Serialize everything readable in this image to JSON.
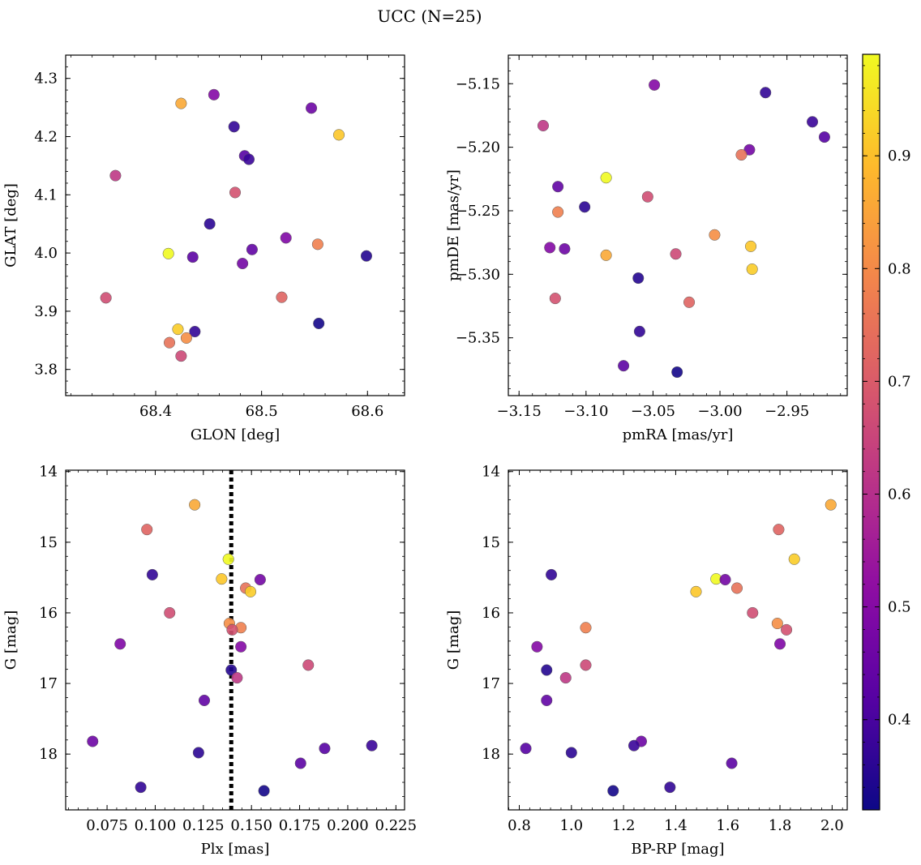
{
  "figure": {
    "title": "UCC (N=25)"
  },
  "colorbar": {
    "colormap": "plasma",
    "range": [
      0.32,
      0.99
    ],
    "ticks": [
      0.4,
      0.5,
      0.6,
      0.7,
      0.8,
      0.9
    ]
  },
  "chart_data": [
    {
      "type": "scatter",
      "id": "glon-glat",
      "xlabel": "GLON [deg]",
      "ylabel": "GLAT [deg]",
      "xlim": [
        68.315,
        68.635
      ],
      "ylim": [
        3.755,
        4.34
      ],
      "y_inverted": false,
      "xticks": [
        68.4,
        68.5,
        68.6
      ],
      "xtick_labels": [
        "68.4",
        "68.5",
        "68.6"
      ],
      "yticks": [
        3.8,
        3.9,
        4.0,
        4.1,
        4.2,
        4.3
      ],
      "ytick_labels": [
        "3.8",
        "3.9",
        "4.0",
        "4.1",
        "4.2",
        "4.3"
      ],
      "points": [
        {
          "x": 68.455,
          "y": 4.272,
          "c": 0.5
        },
        {
          "x": 68.424,
          "y": 4.257,
          "c": 0.86
        },
        {
          "x": 68.547,
          "y": 4.249,
          "c": 0.46
        },
        {
          "x": 68.474,
          "y": 4.217,
          "c": 0.37
        },
        {
          "x": 68.573,
          "y": 4.203,
          "c": 0.91
        },
        {
          "x": 68.484,
          "y": 4.167,
          "c": 0.42
        },
        {
          "x": 68.488,
          "y": 4.161,
          "c": 0.38
        },
        {
          "x": 68.362,
          "y": 4.133,
          "c": 0.62
        },
        {
          "x": 68.475,
          "y": 4.104,
          "c": 0.68
        },
        {
          "x": 68.451,
          "y": 4.05,
          "c": 0.36
        },
        {
          "x": 68.523,
          "y": 4.026,
          "c": 0.49
        },
        {
          "x": 68.553,
          "y": 4.015,
          "c": 0.78
        },
        {
          "x": 68.491,
          "y": 4.006,
          "c": 0.44
        },
        {
          "x": 68.412,
          "y": 3.999,
          "c": 0.99
        },
        {
          "x": 68.599,
          "y": 3.995,
          "c": 0.35
        },
        {
          "x": 68.435,
          "y": 3.993,
          "c": 0.43
        },
        {
          "x": 68.482,
          "y": 3.982,
          "c": 0.47
        },
        {
          "x": 68.353,
          "y": 3.923,
          "c": 0.67
        },
        {
          "x": 68.519,
          "y": 3.924,
          "c": 0.72
        },
        {
          "x": 68.554,
          "y": 3.879,
          "c": 0.33
        },
        {
          "x": 68.421,
          "y": 3.869,
          "c": 0.92
        },
        {
          "x": 68.437,
          "y": 3.865,
          "c": 0.37
        },
        {
          "x": 68.429,
          "y": 3.854,
          "c": 0.81
        },
        {
          "x": 68.413,
          "y": 3.846,
          "c": 0.75
        },
        {
          "x": 68.424,
          "y": 3.823,
          "c": 0.66
        }
      ]
    },
    {
      "type": "scatter",
      "id": "pm",
      "xlabel": "pmRA [mas/yr]",
      "ylabel": "pmDE [mas/yr]",
      "xlim": [
        -3.158,
        -2.905
      ],
      "ylim": [
        -5.3955,
        -5.1275
      ],
      "y_inverted": false,
      "xticks": [
        -3.15,
        -3.1,
        -3.05,
        -3.0,
        -2.95
      ],
      "xtick_labels": [
        "−3.15",
        "−3.10",
        "−3.05",
        "−3.00",
        "−2.95"
      ],
      "yticks": [
        -5.35,
        -5.3,
        -5.25,
        -5.2,
        -5.15
      ],
      "ytick_labels": [
        "−5.35",
        "−5.30",
        "−5.25",
        "−5.20",
        "−5.15"
      ],
      "points": [
        {
          "x": -3.049,
          "y": -5.151,
          "c": 0.5
        },
        {
          "x": -2.966,
          "y": -5.157,
          "c": 0.37
        },
        {
          "x": -2.931,
          "y": -5.18,
          "c": 0.38
        },
        {
          "x": -2.922,
          "y": -5.192,
          "c": 0.42
        },
        {
          "x": -3.132,
          "y": -5.183,
          "c": 0.62
        },
        {
          "x": -2.978,
          "y": -5.202,
          "c": 0.47
        },
        {
          "x": -2.984,
          "y": -5.206,
          "c": 0.75
        },
        {
          "x": -3.085,
          "y": -5.224,
          "c": 0.99
        },
        {
          "x": -3.121,
          "y": -5.231,
          "c": 0.44
        },
        {
          "x": -3.054,
          "y": -5.239,
          "c": 0.67
        },
        {
          "x": -3.101,
          "y": -5.247,
          "c": 0.36
        },
        {
          "x": -3.121,
          "y": -5.251,
          "c": 0.78
        },
        {
          "x": -3.004,
          "y": -5.269,
          "c": 0.81
        },
        {
          "x": -2.977,
          "y": -5.278,
          "c": 0.91
        },
        {
          "x": -3.127,
          "y": -5.279,
          "c": 0.5
        },
        {
          "x": -3.116,
          "y": -5.28,
          "c": 0.46
        },
        {
          "x": -3.085,
          "y": -5.285,
          "c": 0.86
        },
        {
          "x": -3.033,
          "y": -5.284,
          "c": 0.66
        },
        {
          "x": -2.976,
          "y": -5.296,
          "c": 0.92
        },
        {
          "x": -3.061,
          "y": -5.303,
          "c": 0.35
        },
        {
          "x": -3.123,
          "y": -5.319,
          "c": 0.68
        },
        {
          "x": -3.023,
          "y": -5.322,
          "c": 0.72
        },
        {
          "x": -3.06,
          "y": -5.345,
          "c": 0.37
        },
        {
          "x": -3.072,
          "y": -5.372,
          "c": 0.43
        },
        {
          "x": -3.032,
          "y": -5.377,
          "c": 0.33
        }
      ]
    },
    {
      "type": "scatter",
      "id": "plx-g",
      "xlabel": "Plx [mas]",
      "ylabel": "G [mag]",
      "xlim": [
        0.0535,
        0.2295
      ],
      "ylim": [
        18.79,
        13.98
      ],
      "y_inverted": true,
      "xticks": [
        0.075,
        0.1,
        0.125,
        0.15,
        0.175,
        0.2,
        0.225
      ],
      "xtick_labels": [
        "0.075",
        "0.100",
        "0.125",
        "0.150",
        "0.175",
        "0.200",
        "0.225"
      ],
      "yticks": [
        14,
        15,
        16,
        17,
        18
      ],
      "ytick_labels": [
        "14",
        "15",
        "16",
        "17",
        "18"
      ],
      "vline": {
        "x": 0.1395,
        "style": "dotted",
        "color": "#000000"
      },
      "points": [
        {
          "x": 0.1205,
          "y": 14.47,
          "c": 0.86
        },
        {
          "x": 0.0957,
          "y": 14.82,
          "c": 0.72
        },
        {
          "x": 0.138,
          "y": 15.24,
          "c": 0.99
        },
        {
          "x": 0.0985,
          "y": 15.46,
          "c": 0.37
        },
        {
          "x": 0.1345,
          "y": 15.52,
          "c": 0.91
        },
        {
          "x": 0.1545,
          "y": 15.53,
          "c": 0.47
        },
        {
          "x": 0.147,
          "y": 15.65,
          "c": 0.75
        },
        {
          "x": 0.1495,
          "y": 15.7,
          "c": 0.92
        },
        {
          "x": 0.1075,
          "y": 16.0,
          "c": 0.67
        },
        {
          "x": 0.1385,
          "y": 16.15,
          "c": 0.81
        },
        {
          "x": 0.1445,
          "y": 16.21,
          "c": 0.78
        },
        {
          "x": 0.14,
          "y": 16.24,
          "c": 0.68
        },
        {
          "x": 0.0818,
          "y": 16.44,
          "c": 0.49
        },
        {
          "x": 0.1445,
          "y": 16.48,
          "c": 0.5
        },
        {
          "x": 0.1795,
          "y": 16.74,
          "c": 0.66
        },
        {
          "x": 0.1395,
          "y": 16.81,
          "c": 0.35
        },
        {
          "x": 0.1425,
          "y": 16.92,
          "c": 0.62
        },
        {
          "x": 0.1255,
          "y": 17.24,
          "c": 0.44
        },
        {
          "x": 0.0675,
          "y": 17.82,
          "c": 0.46
        },
        {
          "x": 0.2125,
          "y": 17.88,
          "c": 0.38
        },
        {
          "x": 0.188,
          "y": 17.92,
          "c": 0.42
        },
        {
          "x": 0.1225,
          "y": 17.98,
          "c": 0.36
        },
        {
          "x": 0.1755,
          "y": 18.13,
          "c": 0.43
        },
        {
          "x": 0.0925,
          "y": 18.47,
          "c": 0.37
        },
        {
          "x": 0.1565,
          "y": 18.52,
          "c": 0.33
        }
      ]
    },
    {
      "type": "scatter",
      "id": "cmd",
      "xlabel": "BP-RP [mag]",
      "ylabel": "G [mag]",
      "xlim": [
        0.758,
        2.058
      ],
      "ylim": [
        18.79,
        13.98
      ],
      "y_inverted": true,
      "xticks": [
        0.8,
        1.0,
        1.2,
        1.4,
        1.6,
        1.8,
        2.0
      ],
      "xtick_labels": [
        "0.8",
        "1.0",
        "1.2",
        "1.4",
        "1.6",
        "1.8",
        "2.0"
      ],
      "yticks": [
        14,
        15,
        16,
        17,
        18
      ],
      "ytick_labels": [
        "14",
        "15",
        "16",
        "17",
        "18"
      ],
      "points": [
        {
          "x": 1.995,
          "y": 14.47,
          "c": 0.86
        },
        {
          "x": 1.795,
          "y": 14.82,
          "c": 0.72
        },
        {
          "x": 1.855,
          "y": 15.24,
          "c": 0.92
        },
        {
          "x": 0.923,
          "y": 15.46,
          "c": 0.37
        },
        {
          "x": 1.555,
          "y": 15.52,
          "c": 0.99
        },
        {
          "x": 1.59,
          "y": 15.53,
          "c": 0.47
        },
        {
          "x": 1.635,
          "y": 15.65,
          "c": 0.75
        },
        {
          "x": 1.478,
          "y": 15.7,
          "c": 0.91
        },
        {
          "x": 1.695,
          "y": 16.0,
          "c": 0.67
        },
        {
          "x": 1.79,
          "y": 16.15,
          "c": 0.81
        },
        {
          "x": 1.055,
          "y": 16.21,
          "c": 0.78
        },
        {
          "x": 1.825,
          "y": 16.24,
          "c": 0.68
        },
        {
          "x": 1.8,
          "y": 16.44,
          "c": 0.49
        },
        {
          "x": 0.868,
          "y": 16.48,
          "c": 0.5
        },
        {
          "x": 1.055,
          "y": 16.74,
          "c": 0.66
        },
        {
          "x": 0.905,
          "y": 16.81,
          "c": 0.35
        },
        {
          "x": 0.978,
          "y": 16.92,
          "c": 0.62
        },
        {
          "x": 0.905,
          "y": 17.24,
          "c": 0.44
        },
        {
          "x": 1.268,
          "y": 17.82,
          "c": 0.46
        },
        {
          "x": 1.24,
          "y": 17.88,
          "c": 0.38
        },
        {
          "x": 0.825,
          "y": 17.92,
          "c": 0.42
        },
        {
          "x": 1.0,
          "y": 17.98,
          "c": 0.36
        },
        {
          "x": 1.615,
          "y": 18.13,
          "c": 0.43
        },
        {
          "x": 1.378,
          "y": 18.47,
          "c": 0.37
        },
        {
          "x": 1.16,
          "y": 18.52,
          "c": 0.33
        }
      ]
    }
  ]
}
